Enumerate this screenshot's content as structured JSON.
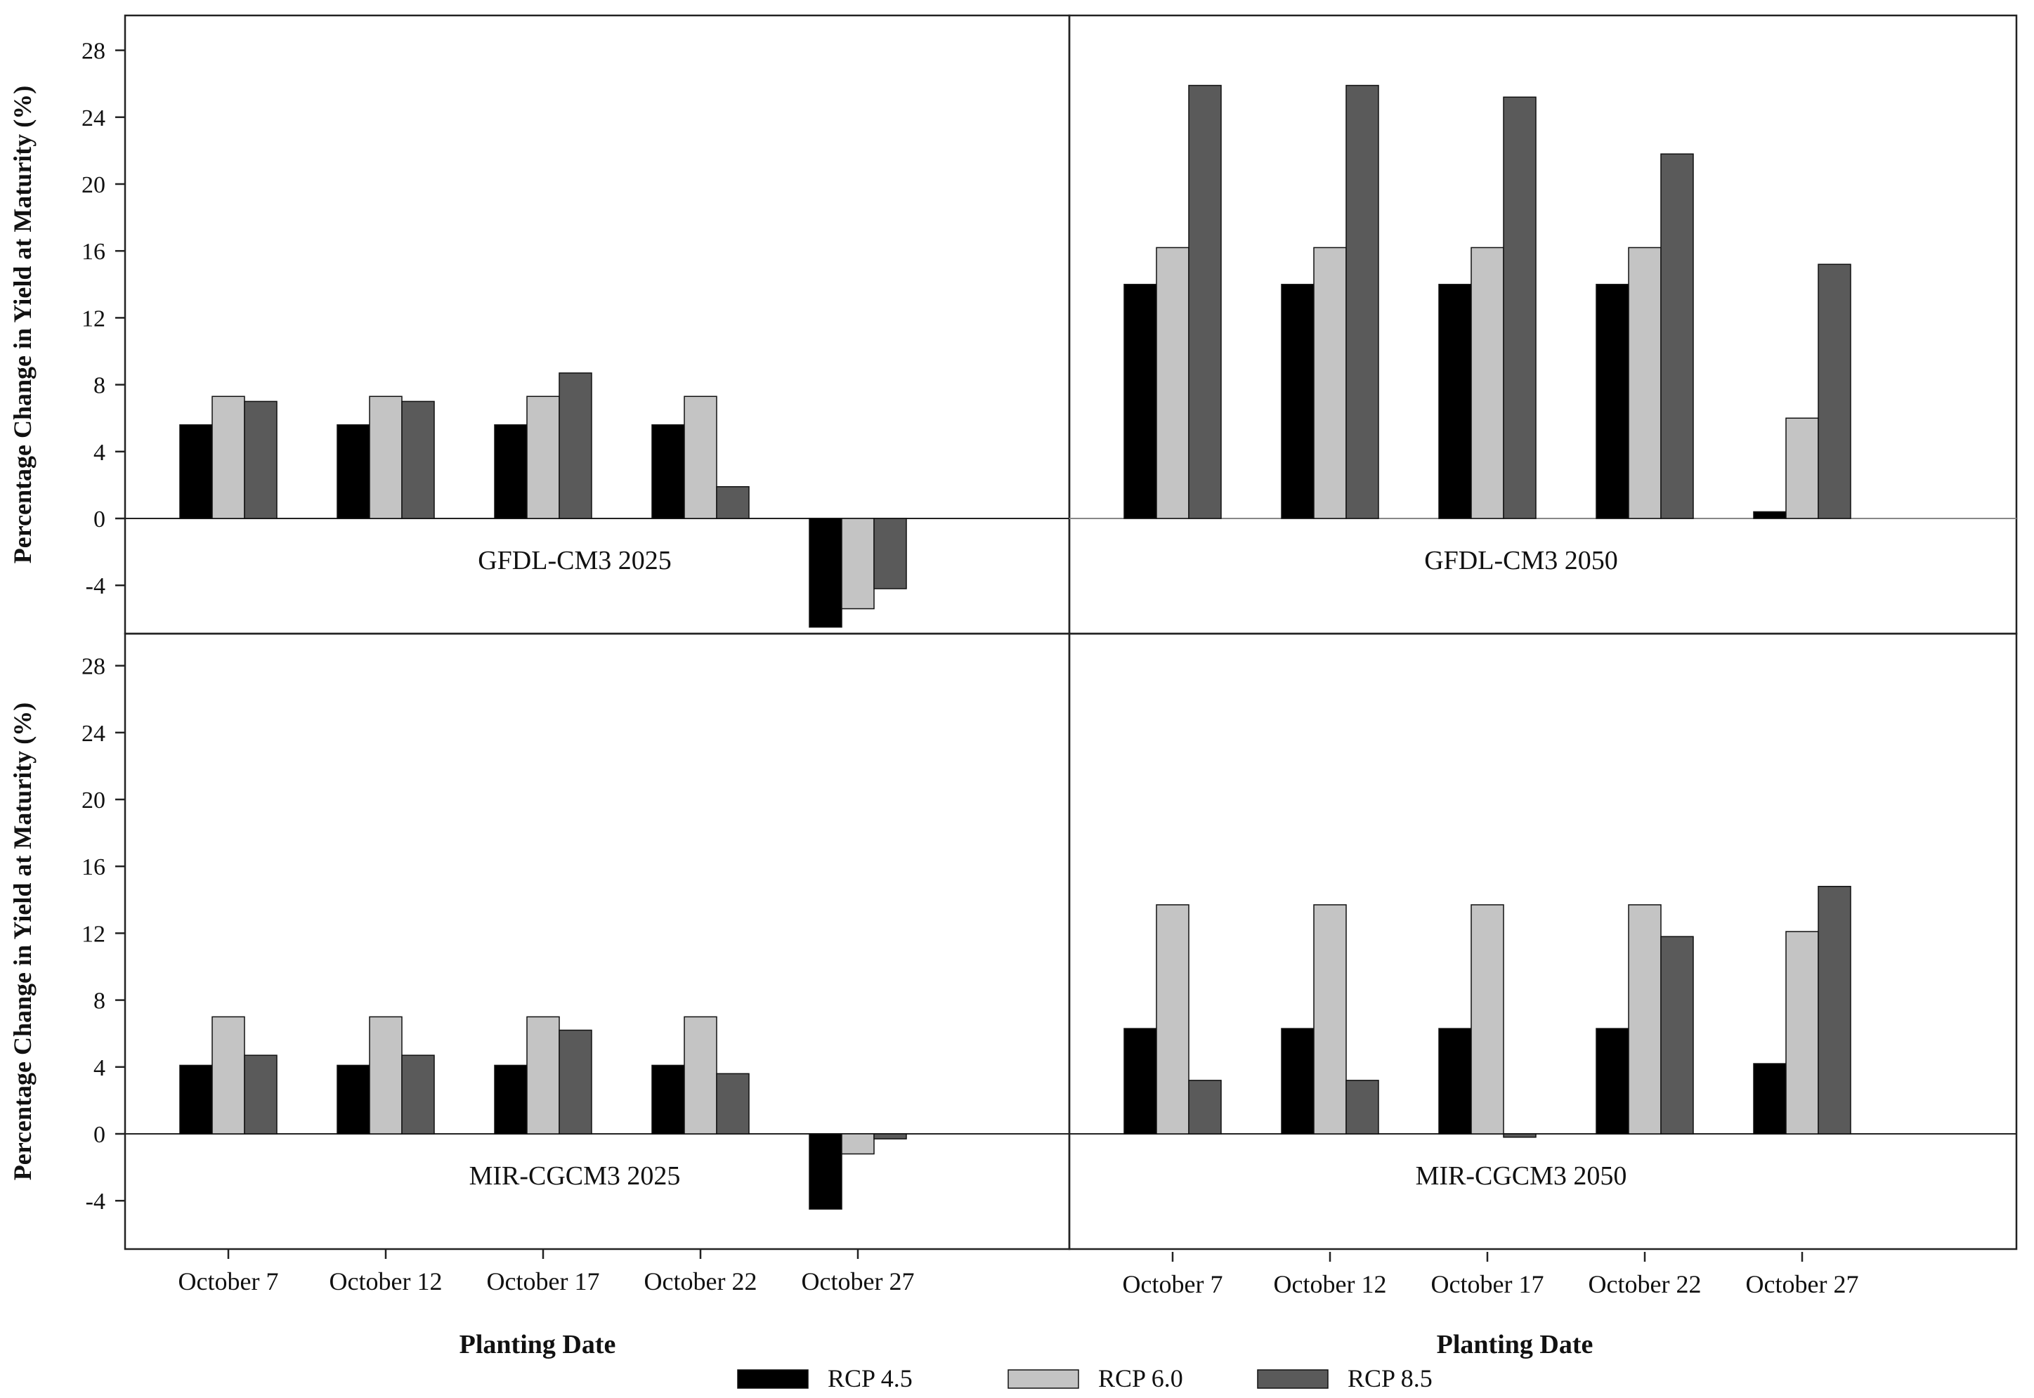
{
  "colors": {
    "rcp45": "#000000",
    "rcp60": "#c4c4c4",
    "rcp85": "#5a5a5a",
    "axis": "#222222"
  },
  "chart_data": {
    "type": "bar",
    "ylabel": "Percentage Change in Yield at Maturity (%)",
    "xlabel": "Planting Date",
    "categories": [
      "October 7",
      "October 12",
      "October 17",
      "October 22",
      "October 27"
    ],
    "yticks": [
      -4,
      0,
      4,
      8,
      12,
      16,
      20,
      24,
      28
    ],
    "ylim": [
      -6.5,
      30
    ],
    "legend": [
      "RCP 4.5",
      "RCP 6.0",
      "RCP 8.5"
    ],
    "panels": [
      {
        "title": "GFDL-CM3 2025",
        "series": [
          {
            "name": "RCP 4.5",
            "values": [
              5.6,
              5.6,
              5.6,
              5.6,
              -6.5
            ]
          },
          {
            "name": "RCP 6.0",
            "values": [
              7.3,
              7.3,
              7.3,
              7.3,
              -5.4
            ]
          },
          {
            "name": "RCP 8.5",
            "values": [
              7.0,
              7.0,
              8.7,
              1.9,
              -4.2
            ]
          }
        ]
      },
      {
        "title": "GFDL-CM3 2050",
        "series": [
          {
            "name": "RCP 4.5",
            "values": [
              14.0,
              14.0,
              14.0,
              14.0,
              0.4
            ]
          },
          {
            "name": "RCP 6.0",
            "values": [
              16.2,
              16.2,
              16.2,
              16.2,
              6.0
            ]
          },
          {
            "name": "RCP 8.5",
            "values": [
              25.9,
              25.9,
              25.2,
              21.8,
              15.2
            ]
          }
        ]
      },
      {
        "title": "MIR-CGCM3 2025",
        "series": [
          {
            "name": "RCP 4.5",
            "values": [
              4.1,
              4.1,
              4.1,
              4.1,
              -4.5
            ]
          },
          {
            "name": "RCP 6.0",
            "values": [
              7.0,
              7.0,
              7.0,
              7.0,
              -1.2
            ]
          },
          {
            "name": "RCP 8.5",
            "values": [
              4.7,
              4.7,
              6.2,
              3.6,
              -0.3
            ]
          }
        ]
      },
      {
        "title": "MIR-CGCM3 2050",
        "series": [
          {
            "name": "RCP 4.5",
            "values": [
              6.3,
              6.3,
              6.3,
              6.3,
              4.2
            ]
          },
          {
            "name": "RCP 6.0",
            "values": [
              13.7,
              13.7,
              13.7,
              13.7,
              12.1
            ]
          },
          {
            "name": "RCP 8.5",
            "values": [
              3.2,
              3.2,
              -0.2,
              11.8,
              14.8
            ]
          }
        ]
      }
    ]
  }
}
